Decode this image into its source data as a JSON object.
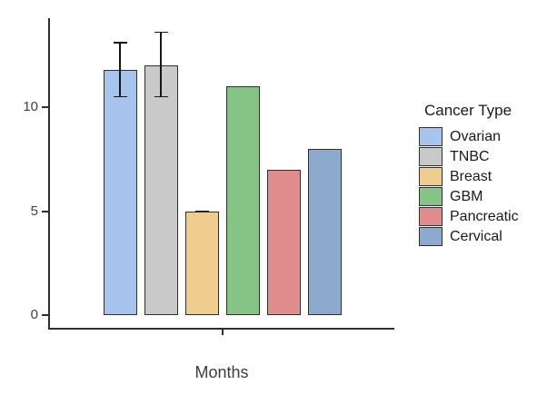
{
  "chart_data": {
    "type": "bar",
    "title": "",
    "xlabel": "Months",
    "ylabel": "",
    "categories": [
      "Ovarian",
      "TNBC",
      "Breast",
      "GBM",
      "Pancreatic",
      "Cervical"
    ],
    "values": [
      11.8,
      12,
      5,
      11,
      7,
      8
    ],
    "error_bars": [
      {
        "low": 10.5,
        "high": 13.1
      },
      {
        "low": 10.5,
        "high": 13.6
      },
      {
        "low": 5,
        "high": 5
      },
      null,
      null,
      null
    ],
    "bar_colors": [
      "#a6c4ee",
      "#c9c9c9",
      "#f0cd8e",
      "#86c386",
      "#e28d8d",
      "#8caacd"
    ],
    "bar_border_color": "#2e2e2e",
    "yticks": [
      0,
      5,
      10
    ],
    "ylim": [
      -0.65,
      14.3
    ],
    "grid": false,
    "legend": {
      "title": "Cancer Type",
      "position": "right",
      "entries": [
        "Ovarian",
        "TNBC",
        "Breast",
        "GBM",
        "Pancreatic",
        "Cervical"
      ]
    }
  }
}
